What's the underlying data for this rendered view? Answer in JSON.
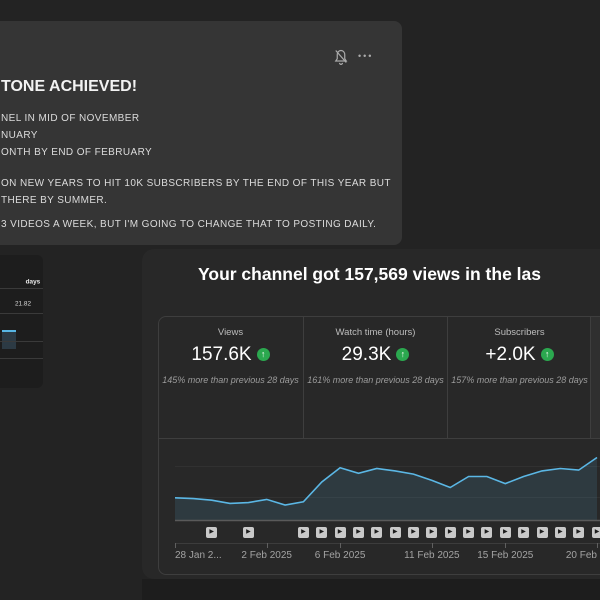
{
  "post": {
    "title": "TONE ACHIEVED!",
    "lines": [
      "NEL IN MID OF NOVEMBER",
      "NUARY",
      "ONTH BY END OF FEBRUARY",
      "ON NEW YEARS TO HIT 10K SUBSCRIBERS BY THE END OF THIS YEAR BUT",
      "THERE BY SUMMER.",
      "3 VIDEOS A WEEK, BUT I'M GOING TO CHANGE THAT TO POSTING DAILY."
    ],
    "more_options_glyph": "•••"
  },
  "thumbnail": {
    "header_fragment": "days",
    "value_fragment": "21.82"
  },
  "analytics": {
    "title": "Your channel got 157,569 views in the las",
    "trend_up_glyph": "↑",
    "stats": [
      {
        "label": "Views",
        "value": "157.6K",
        "caption": "145% more than previous 28 days"
      },
      {
        "label": "Watch time (hours)",
        "value": "29.3K",
        "caption": "161% more than previous 28 days"
      },
      {
        "label": "Subscribers",
        "value": "+2.0K",
        "caption": "157% more than previous 28 days"
      }
    ]
  },
  "chart_data": {
    "type": "area",
    "title": "Your channel got 157,569 views in the las",
    "xlabel": "",
    "ylabel": "",
    "y_axis_labels_visible": false,
    "ylim": [
      0,
      12000
    ],
    "grid": true,
    "days": 23,
    "values_est_daily_views": [
      2800,
      2700,
      2500,
      2100,
      2200,
      2600,
      1900,
      2300,
      4800,
      6600,
      5900,
      6500,
      6200,
      5800,
      5000,
      4100,
      5500,
      5500,
      4600,
      5500,
      6200,
      6500,
      6300,
      7900
    ],
    "x_ticks": [
      {
        "label": "28 Jan 2...",
        "day": 0,
        "anchor": "start"
      },
      {
        "label": "2 Feb 2025",
        "day": 5,
        "anchor": "middle"
      },
      {
        "label": "6 Feb 2025",
        "day": 9,
        "anchor": "middle"
      },
      {
        "label": "11 Feb 2025",
        "day": 14,
        "anchor": "middle"
      },
      {
        "label": "15 Feb 2025",
        "day": 18,
        "anchor": "middle"
      },
      {
        "label": "20 Feb",
        "day": 23,
        "anchor": "end"
      }
    ],
    "video_marker_days": [
      2,
      4,
      7,
      8,
      9,
      10,
      11,
      12,
      13,
      14,
      15,
      16,
      17,
      18,
      19,
      20,
      21,
      22,
      23
    ],
    "marker_glyph": "▶",
    "line_color": "#5bb7e5",
    "fill_color": "rgba(91,183,229,0.13)"
  },
  "colors": {
    "page_bg": "#232323",
    "post_panel_bg": "#353535",
    "analytics_panel_bg": "#282828",
    "positive_green": "#2ba84f",
    "accent_blue": "#5bb7e5"
  }
}
